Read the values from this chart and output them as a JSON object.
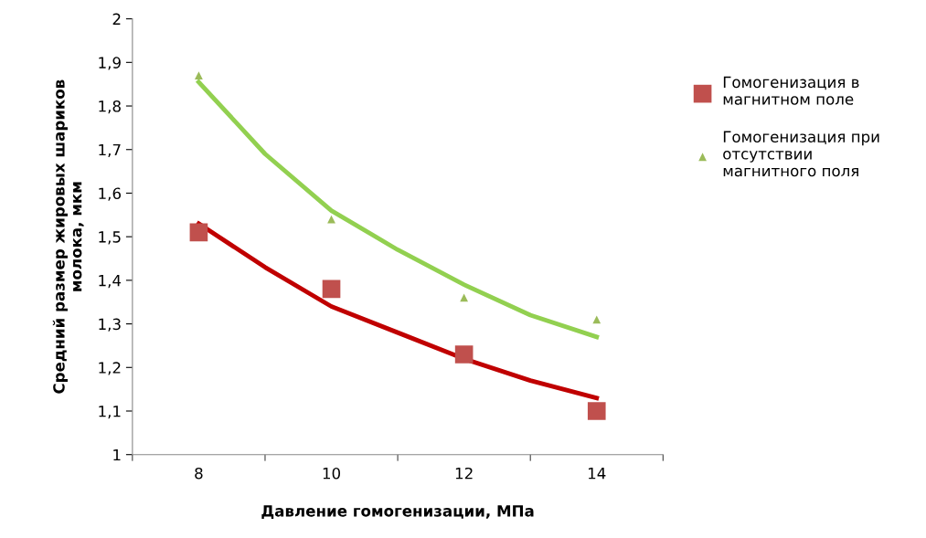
{
  "chart_data": {
    "type": "scatter",
    "xlabel": "Давление гомогенизации, МПа",
    "ylabel": "Средний размер жировых шариков молока, мкм",
    "xlim": [
      7,
      15
    ],
    "xticks": [
      {
        "value": 7,
        "label": null
      },
      {
        "value": 8,
        "label": "8"
      },
      {
        "value": 9,
        "label": null
      },
      {
        "value": 10,
        "label": "10"
      },
      {
        "value": 11,
        "label": null
      },
      {
        "value": 12,
        "label": "12"
      },
      {
        "value": 13,
        "label": null
      },
      {
        "value": 14,
        "label": "14"
      },
      {
        "value": 15,
        "label": null
      }
    ],
    "ylim": [
      1,
      2
    ],
    "yticks": [
      1,
      {
        "value": 1.1,
        "label": "1,1"
      },
      {
        "value": 1.2,
        "label": "1,2"
      },
      {
        "value": 1.3,
        "label": "1,3"
      },
      {
        "value": 1.4,
        "label": "1,4"
      },
      {
        "value": 1.5,
        "label": "1,5"
      },
      {
        "value": 1.6,
        "label": "1,6"
      },
      {
        "value": 1.7,
        "label": "1,7"
      },
      {
        "value": 1.8,
        "label": "1,8"
      },
      {
        "value": 1.9,
        "label": "1,9"
      },
      2
    ],
    "grid": false,
    "legend": "right",
    "series": [
      {
        "name": "Гомогенизация в магнитном поле",
        "color": "#c0504d",
        "marker": "square",
        "x": [
          8,
          10,
          12,
          14
        ],
        "values": [
          1.51,
          1.38,
          1.23,
          1.1
        ]
      },
      {
        "name": "Гомогенизация при отсутствии магнитного поля",
        "color": "#9bbb59",
        "marker": "triangle",
        "x": [
          8,
          10,
          12,
          14
        ],
        "values": [
          1.87,
          1.54,
          1.36,
          1.31
        ]
      },
      {
        "type": "line",
        "color": "#c00000",
        "marker": "none",
        "x": [
          8,
          9,
          10,
          11,
          12,
          13,
          14
        ],
        "values": [
          1.53,
          1.43,
          1.34,
          1.28,
          1.22,
          1.17,
          1.13
        ]
      },
      {
        "type": "line",
        "color": "#92d050",
        "marker": "none",
        "x": [
          8,
          9,
          10,
          11,
          12,
          13,
          14
        ],
        "values": [
          1.855,
          1.69,
          1.56,
          1.47,
          1.39,
          1.32,
          1.27
        ]
      }
    ]
  }
}
